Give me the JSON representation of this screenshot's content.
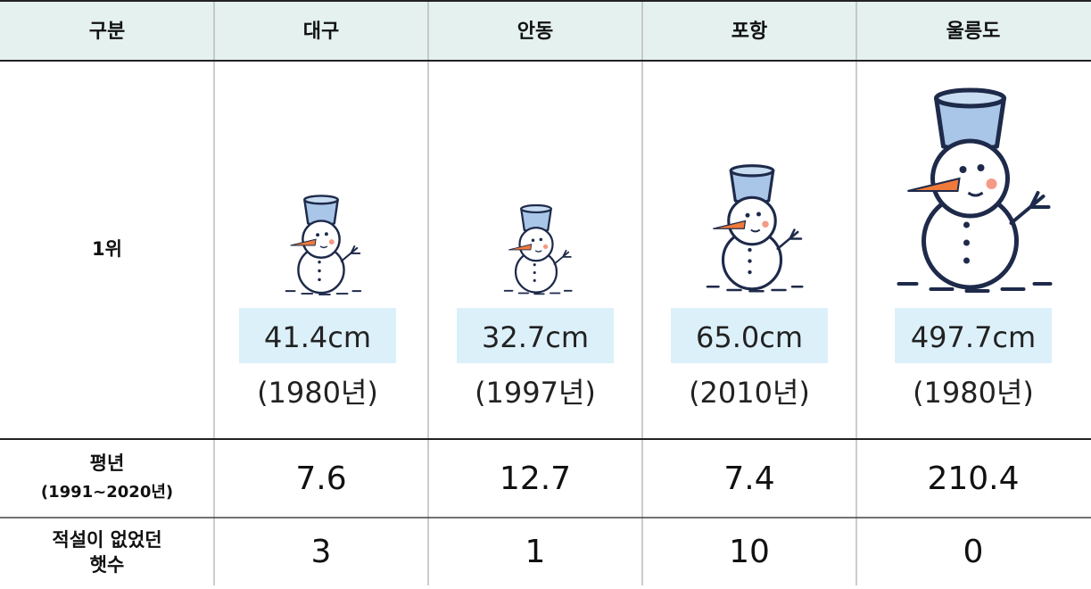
{
  "table": {
    "header": [
      "구분",
      "대구",
      "안동",
      "포항",
      "울릉도"
    ],
    "rows": [
      {
        "label": "1위",
        "cells": [
          {
            "value": "41.4cm",
            "year": "(1980년)"
          },
          {
            "value": "32.7cm",
            "year": "(1997년)"
          },
          {
            "value": "65.0cm",
            "year": "(2010년)"
          },
          {
            "value": "497.7cm",
            "year": "(1980년)"
          }
        ]
      },
      {
        "label": [
          "평년",
          "(1991~2020년)"
        ],
        "cells": [
          "7.6",
          "12.7",
          "7.4",
          "210.4"
        ]
      },
      {
        "label": [
          "적설이 없었던",
          "햇수"
        ],
        "cells": [
          "3",
          "1",
          "10",
          "0"
        ]
      }
    ]
  }
}
